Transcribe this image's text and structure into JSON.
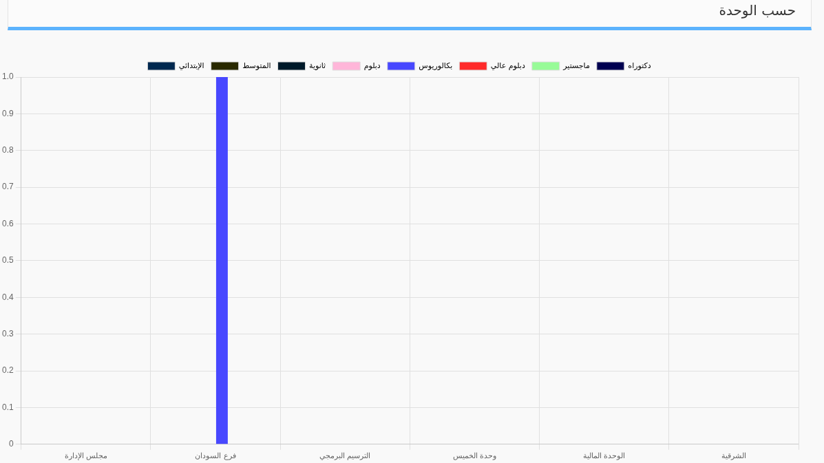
{
  "chart_data": {
    "type": "bar",
    "title": "حسب الوحدة",
    "categories": [
      "مجلس الإدارة",
      "فرع السودان",
      "الترسيم البرمجي",
      "وحدة الخميس",
      "الوحدة المالية",
      "الشرقية"
    ],
    "series": [
      {
        "name": "الإبتدائي",
        "color": "#00284f",
        "values": [
          0,
          0,
          0,
          0,
          0,
          0
        ]
      },
      {
        "name": "المتوسط",
        "color": "#2a2a00",
        "values": [
          0,
          0,
          0,
          0,
          0,
          0
        ]
      },
      {
        "name": "ثانوية",
        "color": "#001a2a",
        "values": [
          0,
          0,
          0,
          0,
          0,
          0
        ]
      },
      {
        "name": "دبلوم",
        "color": "#ffb6d9",
        "values": [
          0,
          0,
          0,
          0,
          0,
          0
        ]
      },
      {
        "name": "بكالوريوس",
        "color": "#4848ff",
        "values": [
          0,
          1,
          0,
          0,
          0,
          0
        ]
      },
      {
        "name": "دبلوم عالي",
        "color": "#ff2a2a",
        "values": [
          0,
          0,
          0,
          0,
          0,
          0
        ]
      },
      {
        "name": "ماجستير",
        "color": "#98fb98",
        "values": [
          0,
          0,
          0,
          0,
          0,
          0
        ]
      },
      {
        "name": "دكتوراه",
        "color": "#000050",
        "values": [
          0,
          0,
          0,
          0,
          0,
          0
        ]
      }
    ],
    "ylim": [
      0,
      1
    ],
    "yticks": [
      0,
      0.1,
      0.2,
      0.3,
      0.4,
      0.5,
      0.6,
      0.7,
      0.8,
      0.9,
      {
        "value": 1,
        "label": "1.0"
      }
    ],
    "grid": true,
    "legend": "top"
  }
}
